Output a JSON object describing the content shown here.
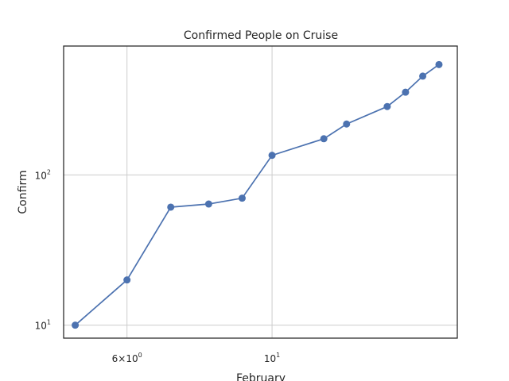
{
  "chart_data": {
    "type": "line",
    "title": "Confirmed People on Cruise",
    "xlabel": "February",
    "ylabel": "Confirm",
    "xscale": "log",
    "yscale": "log",
    "xlim": [
      4.8,
      19.2
    ],
    "ylim": [
      8.2,
      720
    ],
    "grid": true,
    "x_ticks": [
      {
        "value": 6,
        "base": "6×10",
        "exp": "0"
      },
      {
        "value": 10,
        "base": "10",
        "exp": "1"
      }
    ],
    "y_ticks": [
      {
        "value": 10,
        "base": "10",
        "exp": "1"
      },
      {
        "value": 100,
        "base": "10",
        "exp": "2"
      }
    ],
    "series": [
      {
        "color": "#4c72b0",
        "x": [
          5,
          6,
          7,
          8,
          9,
          10,
          12,
          13,
          15,
          16,
          17,
          18
        ],
        "y": [
          10,
          20,
          61,
          64,
          70,
          135,
          174,
          218,
          285,
          355,
          454,
          542
        ]
      }
    ]
  }
}
